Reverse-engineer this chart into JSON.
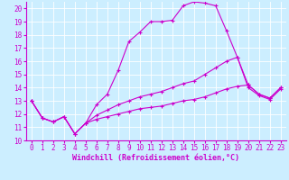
{
  "xlabel": "Windchill (Refroidissement éolien,°C)",
  "background_color": "#cceeff",
  "grid_color": "#aaddcc",
  "line_color": "#cc00cc",
  "spine_color": "#cc00cc",
  "xlim": [
    -0.5,
    23.5
  ],
  "ylim": [
    10,
    20.5
  ],
  "yticks": [
    10,
    11,
    12,
    13,
    14,
    15,
    16,
    17,
    18,
    19,
    20
  ],
  "xticks": [
    0,
    1,
    2,
    3,
    4,
    5,
    6,
    7,
    8,
    9,
    10,
    11,
    12,
    13,
    14,
    15,
    16,
    17,
    18,
    19,
    20,
    21,
    22,
    23
  ],
  "series1_x": [
    0,
    1,
    2,
    3,
    4,
    5,
    6,
    7,
    8,
    9,
    10,
    11,
    12,
    13,
    14,
    15,
    16,
    17,
    18,
    19,
    20,
    21,
    22,
    23
  ],
  "series1_y": [
    13,
    11.7,
    11.4,
    11.8,
    10.5,
    11.3,
    12.7,
    13.5,
    15.3,
    17.5,
    18.2,
    19.0,
    19.0,
    19.1,
    20.2,
    20.5,
    20.4,
    20.2,
    18.3,
    16.3,
    14.0,
    13.4,
    13.1,
    13.9
  ],
  "series2_x": [
    0,
    1,
    2,
    3,
    4,
    5,
    6,
    7,
    8,
    9,
    10,
    11,
    12,
    13,
    14,
    15,
    16,
    17,
    18,
    19,
    20,
    21,
    22,
    23
  ],
  "series2_y": [
    13,
    11.7,
    11.4,
    11.8,
    10.5,
    11.3,
    11.9,
    12.3,
    12.7,
    13.0,
    13.3,
    13.5,
    13.7,
    14.0,
    14.3,
    14.5,
    15.0,
    15.5,
    16.0,
    16.3,
    14.2,
    13.5,
    13.2,
    14.0
  ],
  "series3_x": [
    0,
    1,
    2,
    3,
    4,
    5,
    6,
    7,
    8,
    9,
    10,
    11,
    12,
    13,
    14,
    15,
    16,
    17,
    18,
    19,
    20,
    21,
    22,
    23
  ],
  "series3_y": [
    13,
    11.7,
    11.4,
    11.8,
    10.5,
    11.3,
    11.6,
    11.8,
    12.0,
    12.2,
    12.4,
    12.5,
    12.6,
    12.8,
    13.0,
    13.1,
    13.3,
    13.6,
    13.9,
    14.1,
    14.2,
    13.5,
    13.2,
    14.0
  ],
  "tick_fontsize": 5.5,
  "xlabel_fontsize": 6.0
}
